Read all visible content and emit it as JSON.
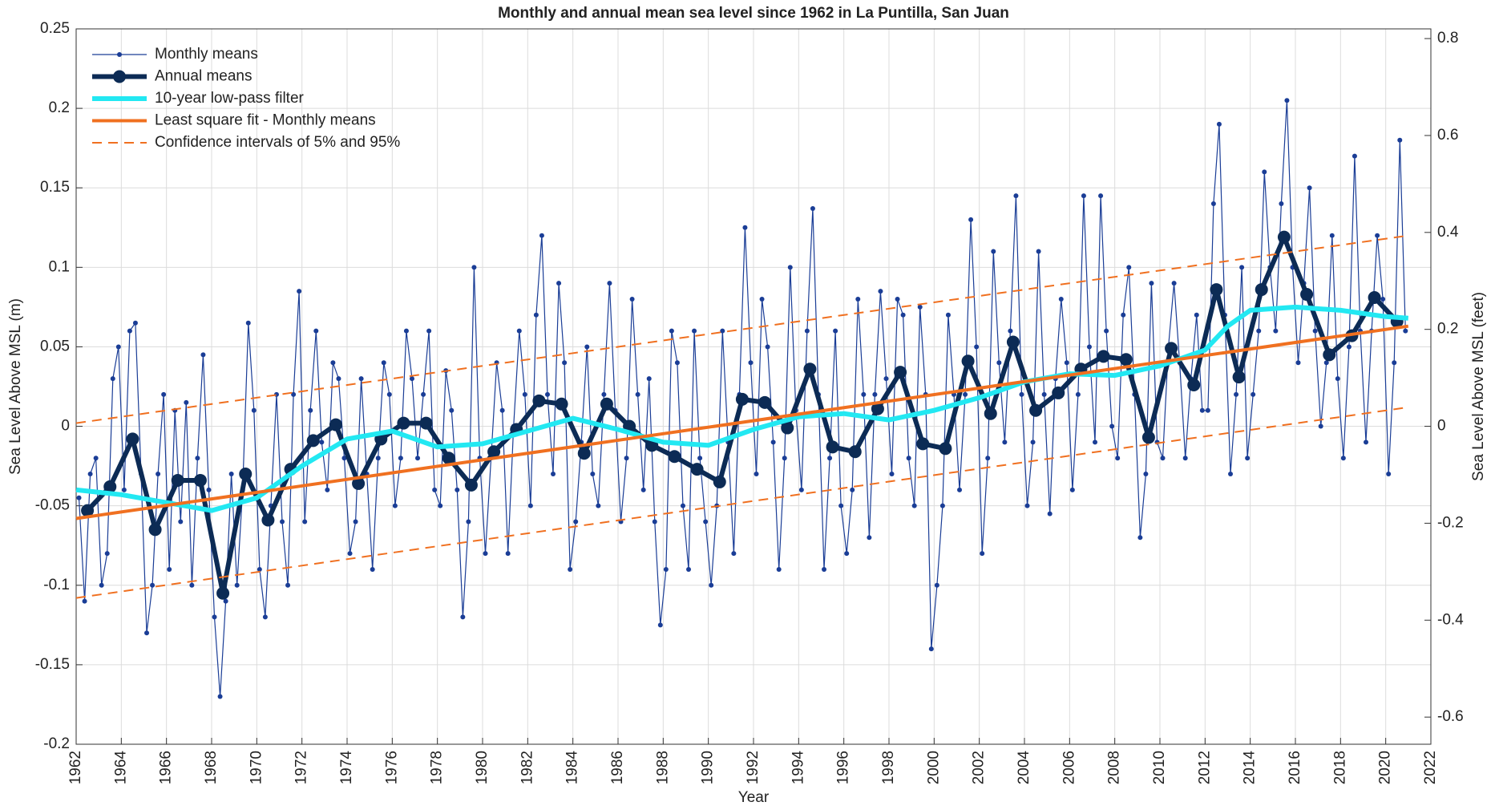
{
  "chart_data": {
    "type": "line",
    "title": "Monthly and annual mean sea level since 1962 in La Puntilla, San Juan",
    "xlabel": "Year",
    "ylabel": "Sea Level Above MSL (m)",
    "y2label": "Sea Level Above MSL (feet)",
    "xlim": [
      1962,
      2022
    ],
    "xticks": [
      1962,
      1964,
      1966,
      1968,
      1970,
      1972,
      1974,
      1976,
      1978,
      1980,
      1982,
      1984,
      1986,
      1988,
      1990,
      1992,
      1994,
      1996,
      1998,
      2000,
      2002,
      2004,
      2006,
      2008,
      2010,
      2012,
      2014,
      2016,
      2018,
      2020,
      2022
    ],
    "ylim": [
      -0.2,
      0.25
    ],
    "yticks": [
      -0.2,
      -0.15,
      -0.1,
      -0.05,
      0,
      0.05,
      0.1,
      0.15,
      0.2,
      0.25
    ],
    "y2lim": [
      -0.656,
      0.82
    ],
    "y2ticks": [
      -0.6,
      -0.4,
      -0.2,
      0,
      0.2,
      0.4,
      0.6,
      0.8
    ],
    "grid": true,
    "legend": "upper left",
    "series": [
      {
        "name": "Monthly means",
        "color": "#1a3d96",
        "marker": true,
        "x": [
          1962.125,
          1962.375,
          1962.625,
          1962.875,
          1963.125,
          1963.375,
          1963.625,
          1963.875,
          1964.125,
          1964.375,
          1964.625,
          1964.875,
          1965.125,
          1965.375,
          1965.625,
          1965.875,
          1966.125,
          1966.375,
          1966.625,
          1966.875,
          1967.125,
          1967.375,
          1967.625,
          1967.875,
          1968.125,
          1968.375,
          1968.625,
          1968.875,
          1969.125,
          1969.375,
          1969.625,
          1969.875,
          1970.125,
          1970.375,
          1970.625,
          1970.875,
          1971.125,
          1971.375,
          1971.625,
          1971.875,
          1972.125,
          1972.375,
          1972.625,
          1972.875,
          1973.125,
          1973.375,
          1973.625,
          1973.875,
          1974.125,
          1974.375,
          1974.625,
          1974.875,
          1975.125,
          1975.375,
          1975.625,
          1975.875,
          1976.125,
          1976.375,
          1976.625,
          1976.875,
          1977.125,
          1977.375,
          1977.625,
          1977.875,
          1978.125,
          1978.375,
          1978.625,
          1978.875,
          1979.125,
          1979.375,
          1979.625,
          1979.875,
          1980.125,
          1980.375,
          1980.625,
          1980.875,
          1981.125,
          1981.375,
          1981.625,
          1981.875,
          1982.125,
          1982.375,
          1982.625,
          1982.875,
          1983.125,
          1983.375,
          1983.625,
          1983.875,
          1984.125,
          1984.375,
          1984.625,
          1984.875,
          1985.125,
          1985.375,
          1985.625,
          1985.875,
          1986.125,
          1986.375,
          1986.625,
          1986.875,
          1987.125,
          1987.375,
          1987.625,
          1987.875,
          1988.125,
          1988.375,
          1988.625,
          1988.875,
          1989.125,
          1989.375,
          1989.625,
          1989.875,
          1990.125,
          1990.375,
          1990.625,
          1990.875,
          1991.125,
          1991.375,
          1991.625,
          1991.875,
          1992.125,
          1992.375,
          1992.625,
          1992.875,
          1993.125,
          1993.375,
          1993.625,
          1993.875,
          1994.125,
          1994.375,
          1994.625,
          1994.875,
          1995.125,
          1995.375,
          1995.625,
          1995.875,
          1996.125,
          1996.375,
          1996.625,
          1996.875,
          1997.125,
          1997.375,
          1997.625,
          1997.875,
          1998.125,
          1998.375,
          1998.625,
          1998.875,
          1999.125,
          1999.375,
          1999.625,
          1999.875,
          2000.125,
          2000.375,
          2000.625,
          2000.875,
          2001.125,
          2001.375,
          2001.625,
          2001.875,
          2002.125,
          2002.375,
          2002.625,
          2002.875,
          2003.125,
          2003.375,
          2003.625,
          2003.875,
          2004.125,
          2004.375,
          2004.625,
          2004.875,
          2005.125,
          2005.375,
          2005.625,
          2005.875,
          2006.125,
          2006.375,
          2006.625,
          2006.875,
          2007.125,
          2007.375,
          2007.625,
          2007.875,
          2008.125,
          2008.375,
          2008.625,
          2008.875,
          2009.125,
          2009.375,
          2009.625,
          2009.875,
          2010.125,
          2010.375,
          2010.625,
          2010.875,
          2011.125,
          2011.375,
          2011.625,
          2011.875,
          2012.125,
          2012.375,
          2012.625,
          2012.875,
          2013.125,
          2013.375,
          2013.625,
          2013.875,
          2014.125,
          2014.375,
          2014.625,
          2014.875,
          2015.125,
          2015.375,
          2015.625,
          2015.875,
          2016.125,
          2016.375,
          2016.625,
          2016.875,
          2017.125,
          2017.375,
          2017.625,
          2017.875,
          2018.125,
          2018.375,
          2018.625,
          2018.875,
          2019.125,
          2019.375,
          2019.625,
          2019.875,
          2020.125,
          2020.375,
          2020.625,
          2020.875
        ],
        "values": [
          -0.045,
          -0.11,
          -0.03,
          -0.02,
          -0.1,
          -0.08,
          0.03,
          0.05,
          -0.04,
          0.06,
          0.065,
          -0.03,
          -0.13,
          -0.1,
          -0.03,
          0.02,
          -0.09,
          0.01,
          -0.06,
          0.015,
          -0.1,
          -0.02,
          0.045,
          -0.04,
          -0.12,
          -0.17,
          -0.11,
          -0.03,
          -0.1,
          -0.04,
          0.065,
          0.01,
          -0.09,
          -0.12,
          -0.05,
          0.02,
          -0.06,
          -0.1,
          0.02,
          0.085,
          -0.06,
          0.01,
          0.06,
          -0.01,
          -0.04,
          0.04,
          0.03,
          -0.02,
          -0.08,
          -0.06,
          0.03,
          -0.03,
          -0.09,
          -0.02,
          0.04,
          0.02,
          -0.05,
          -0.02,
          0.06,
          0.03,
          -0.02,
          0.02,
          0.06,
          -0.04,
          -0.05,
          0.035,
          0.01,
          -0.04,
          -0.12,
          -0.06,
          0.1,
          -0.02,
          -0.08,
          -0.02,
          0.04,
          0.01,
          -0.08,
          0.0,
          0.06,
          0.02,
          -0.05,
          0.07,
          0.12,
          0.02,
          -0.03,
          0.09,
          0.04,
          -0.09,
          -0.06,
          -0.01,
          0.05,
          -0.03,
          -0.05,
          0.02,
          0.09,
          0.01,
          -0.06,
          -0.02,
          0.08,
          0.02,
          -0.04,
          0.03,
          -0.06,
          -0.125,
          -0.09,
          0.06,
          0.04,
          -0.05,
          -0.09,
          0.06,
          -0.02,
          -0.06,
          -0.1,
          -0.05,
          0.06,
          -0.01,
          -0.08,
          0.02,
          0.125,
          0.04,
          -0.03,
          0.08,
          0.05,
          -0.01,
          -0.09,
          -0.02,
          0.1,
          0.01,
          -0.04,
          0.06,
          0.137,
          0.02,
          -0.09,
          -0.02,
          0.06,
          -0.05,
          -0.08,
          -0.04,
          0.08,
          0.02,
          -0.07,
          0.02,
          0.085,
          0.03,
          -0.03,
          0.08,
          0.07,
          -0.02,
          -0.05,
          0.075,
          0.02,
          -0.14,
          -0.1,
          -0.05,
          0.07,
          0.02,
          -0.04,
          0.02,
          0.13,
          0.05,
          -0.08,
          -0.02,
          0.11,
          0.04,
          -0.01,
          0.06,
          0.145,
          0.02,
          -0.05,
          -0.01,
          0.11,
          0.02,
          -0.055,
          0.03,
          0.08,
          0.04,
          -0.04,
          0.02,
          0.145,
          0.05,
          -0.01,
          0.145,
          0.06,
          0.0,
          -0.02,
          0.07,
          0.1,
          0.02,
          -0.07,
          -0.03,
          0.09,
          -0.01,
          -0.02,
          0.05,
          0.09,
          0.04,
          -0.02,
          0.03,
          0.07,
          0.01,
          0.01,
          0.14,
          0.19,
          0.07,
          -0.03,
          0.02,
          0.1,
          -0.02,
          0.02,
          0.06,
          0.16,
          0.1,
          0.06,
          0.14,
          0.205,
          0.1,
          0.04,
          0.09,
          0.15,
          0.06,
          0.0,
          0.04,
          0.12,
          0.03,
          -0.02,
          0.05,
          0.17,
          0.06,
          -0.01,
          0.06,
          0.12,
          0.08,
          -0.03,
          0.04,
          0.18,
          0.06
        ]
      },
      {
        "name": "Annual means",
        "color": "#0c2b55",
        "marker": true,
        "x": [
          1962.5,
          1963.5,
          1964.5,
          1965.5,
          1966.5,
          1967.5,
          1968.5,
          1969.5,
          1970.5,
          1971.5,
          1972.5,
          1973.5,
          1974.5,
          1975.5,
          1976.5,
          1977.5,
          1978.5,
          1979.5,
          1980.5,
          1981.5,
          1982.5,
          1983.5,
          1984.5,
          1985.5,
          1986.5,
          1987.5,
          1988.5,
          1989.5,
          1990.5,
          1991.5,
          1992.5,
          1993.5,
          1994.5,
          1995.5,
          1996.5,
          1997.5,
          1998.5,
          1999.5,
          2000.5,
          2001.5,
          2002.5,
          2003.5,
          2004.5,
          2005.5,
          2006.5,
          2007.5,
          2008.5,
          2009.5,
          2010.5,
          2011.5,
          2012.5,
          2013.5,
          2014.5,
          2015.5,
          2016.5,
          2017.5,
          2018.5,
          2019.5,
          2020.5
        ],
        "values": [
          -0.053,
          -0.038,
          -0.008,
          -0.065,
          -0.034,
          -0.034,
          -0.105,
          -0.03,
          -0.059,
          -0.027,
          -0.009,
          0.001,
          -0.036,
          -0.008,
          0.002,
          0.002,
          -0.02,
          -0.037,
          -0.016,
          -0.002,
          0.016,
          0.014,
          -0.017,
          0.014,
          0.0,
          -0.012,
          -0.019,
          -0.027,
          -0.035,
          0.017,
          0.015,
          -0.001,
          0.036,
          -0.013,
          -0.016,
          0.011,
          0.034,
          -0.011,
          -0.014,
          0.041,
          0.008,
          0.053,
          0.01,
          0.021,
          0.036,
          0.044,
          0.042,
          -0.007,
          0.049,
          0.026,
          0.086,
          0.031,
          0.086,
          0.119,
          0.083,
          0.045,
          0.057,
          0.081,
          0.066
        ]
      },
      {
        "name": "10-year low-pass filter",
        "color": "#22e8f2",
        "marker": false,
        "x": [
          1962,
          1964,
          1966,
          1968,
          1970,
          1972,
          1974,
          1976,
          1978,
          1980,
          1982,
          1984,
          1986,
          1988,
          1990,
          1992,
          1994,
          1996,
          1998,
          2000,
          2002,
          2004,
          2006,
          2008,
          2010,
          2012,
          2013,
          2014,
          2016,
          2018,
          2020,
          2021
        ],
        "values": [
          -0.04,
          -0.043,
          -0.048,
          -0.053,
          -0.045,
          -0.025,
          -0.008,
          -0.003,
          -0.013,
          -0.011,
          -0.003,
          0.005,
          -0.002,
          -0.01,
          -0.012,
          -0.002,
          0.006,
          0.008,
          0.004,
          0.01,
          0.018,
          0.028,
          0.033,
          0.032,
          0.038,
          0.048,
          0.063,
          0.073,
          0.075,
          0.073,
          0.069,
          0.068
        ]
      },
      {
        "name": "Least square fit - Monthly means",
        "color": "#f07020",
        "marker": false,
        "x": [
          1962,
          2021
        ],
        "values": [
          -0.058,
          0.063
        ]
      },
      {
        "name": "Confidence intervals of 5% and 95%",
        "color": "#f07020",
        "marker": false,
        "dashed": true,
        "x": [
          1962,
          2021
        ],
        "values": [
          0.002,
          0.12
        ]
      },
      {
        "color": "#f07020",
        "marker": false,
        "dashed": true,
        "x": [
          1962,
          2021
        ],
        "values": [
          -0.108,
          0.012
        ]
      }
    ]
  }
}
